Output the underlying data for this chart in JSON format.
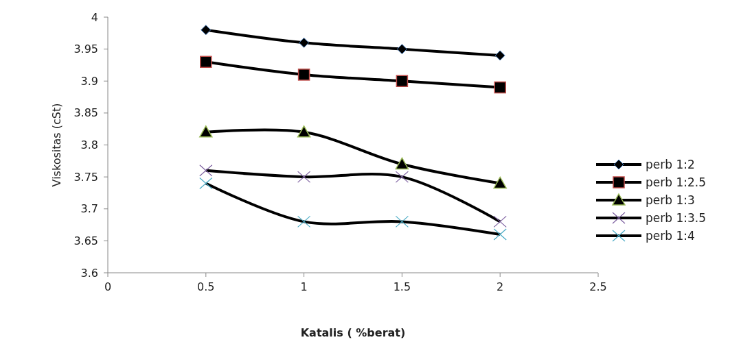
{
  "chart_data": {
    "type": "line",
    "xlabel": "Katalis ( %berat)",
    "ylabel": "Viskositas (cSt)",
    "x": [
      0.5,
      1,
      1.5,
      2
    ],
    "xlim": [
      0,
      2.5
    ],
    "xticks": [
      0,
      0.5,
      1,
      1.5,
      2,
      2.5
    ],
    "ylim": [
      3.6,
      4
    ],
    "yticks": [
      3.6,
      3.65,
      3.7,
      3.75,
      3.8,
      3.85,
      3.9,
      3.95,
      4
    ],
    "grid": false,
    "legend": "right",
    "series": [
      {
        "name": "perb 1:2",
        "color": "#4a7ebb",
        "marker": "diamond",
        "values": [
          3.98,
          3.96,
          3.95,
          3.94
        ]
      },
      {
        "name": "perb 1:2.5",
        "color": "#be4b48",
        "marker": "square",
        "values": [
          3.93,
          3.91,
          3.9,
          3.89
        ]
      },
      {
        "name": "perb 1:3",
        "color": "#98b954",
        "marker": "triangle",
        "values": [
          3.82,
          3.82,
          3.77,
          3.74
        ]
      },
      {
        "name": "perb 1:3.5",
        "color": "#7d60a0",
        "marker": "cross",
        "values": [
          3.76,
          3.75,
          3.75,
          3.68
        ]
      },
      {
        "name": "perb 1:4",
        "color": "#4bacc6",
        "marker": "cross",
        "values": [
          3.74,
          3.68,
          3.68,
          3.66
        ]
      }
    ]
  }
}
